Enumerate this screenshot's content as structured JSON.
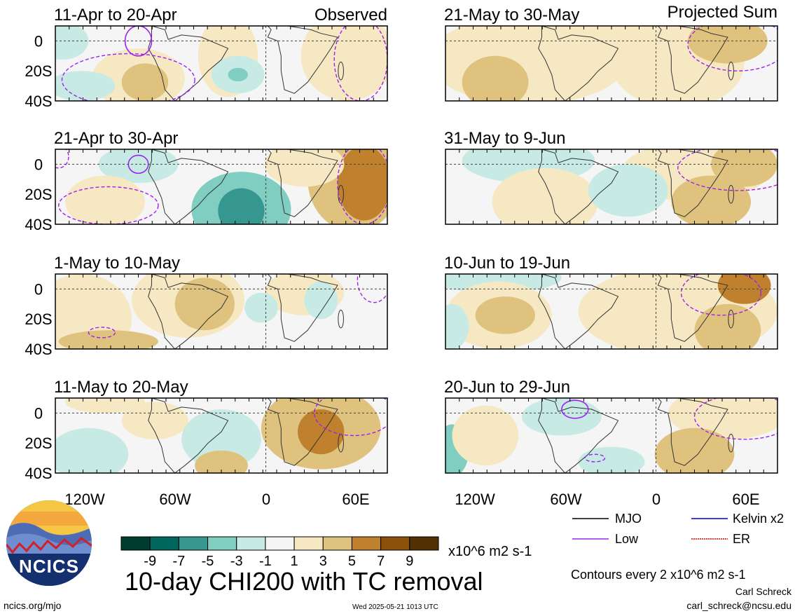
{
  "headers": {
    "observed": "Observed",
    "projected": "Projected Sum"
  },
  "left_panels": [
    {
      "title": "11-Apr to 20-Apr"
    },
    {
      "title": "21-Apr to 30-Apr"
    },
    {
      "title": "1-May to 10-May"
    },
    {
      "title": "11-May to 20-May"
    }
  ],
  "right_panels": [
    {
      "title": "21-May to 30-May"
    },
    {
      "title": "31-May to 9-Jun"
    },
    {
      "title": "10-Jun to 19-Jun"
    },
    {
      "title": "20-Jun to 29-Jun"
    }
  ],
  "lat_labels": [
    "0",
    "20S",
    "40S"
  ],
  "lon_labels": [
    "120W",
    "60W",
    "0",
    "60E"
  ],
  "colorbar": {
    "labels": [
      "-9",
      "-7",
      "-5",
      "-3",
      "-1",
      "1",
      "3",
      "5",
      "7",
      "9"
    ],
    "colors": [
      "#003c30",
      "#01665e",
      "#35978f",
      "#80cdc1",
      "#c7eae5",
      "#f5f5f5",
      "#f6e8c3",
      "#dfc27d",
      "#bf812d",
      "#8c510a",
      "#543005"
    ],
    "units": "x10^6 m2 s-1"
  },
  "main_title": "10-day CHI200 with TC removal",
  "legend": [
    {
      "label": "MJO",
      "color": "#000000"
    },
    {
      "label": "Kelvin x2",
      "color": "#0000cc"
    },
    {
      "label": "Low",
      "color": "#a020f0"
    },
    {
      "label": "ER",
      "color": "#cc0000"
    }
  ],
  "contours_note": "Contours every 2 x10^6 m2 s-1",
  "author": "Carl Schreck",
  "email": "carl_schreck@ncsu.edu",
  "site": "ncics.org/mjo",
  "timestamp": "Wed 2025-05-21 1013 UTC",
  "logo_text": "NCICS"
}
